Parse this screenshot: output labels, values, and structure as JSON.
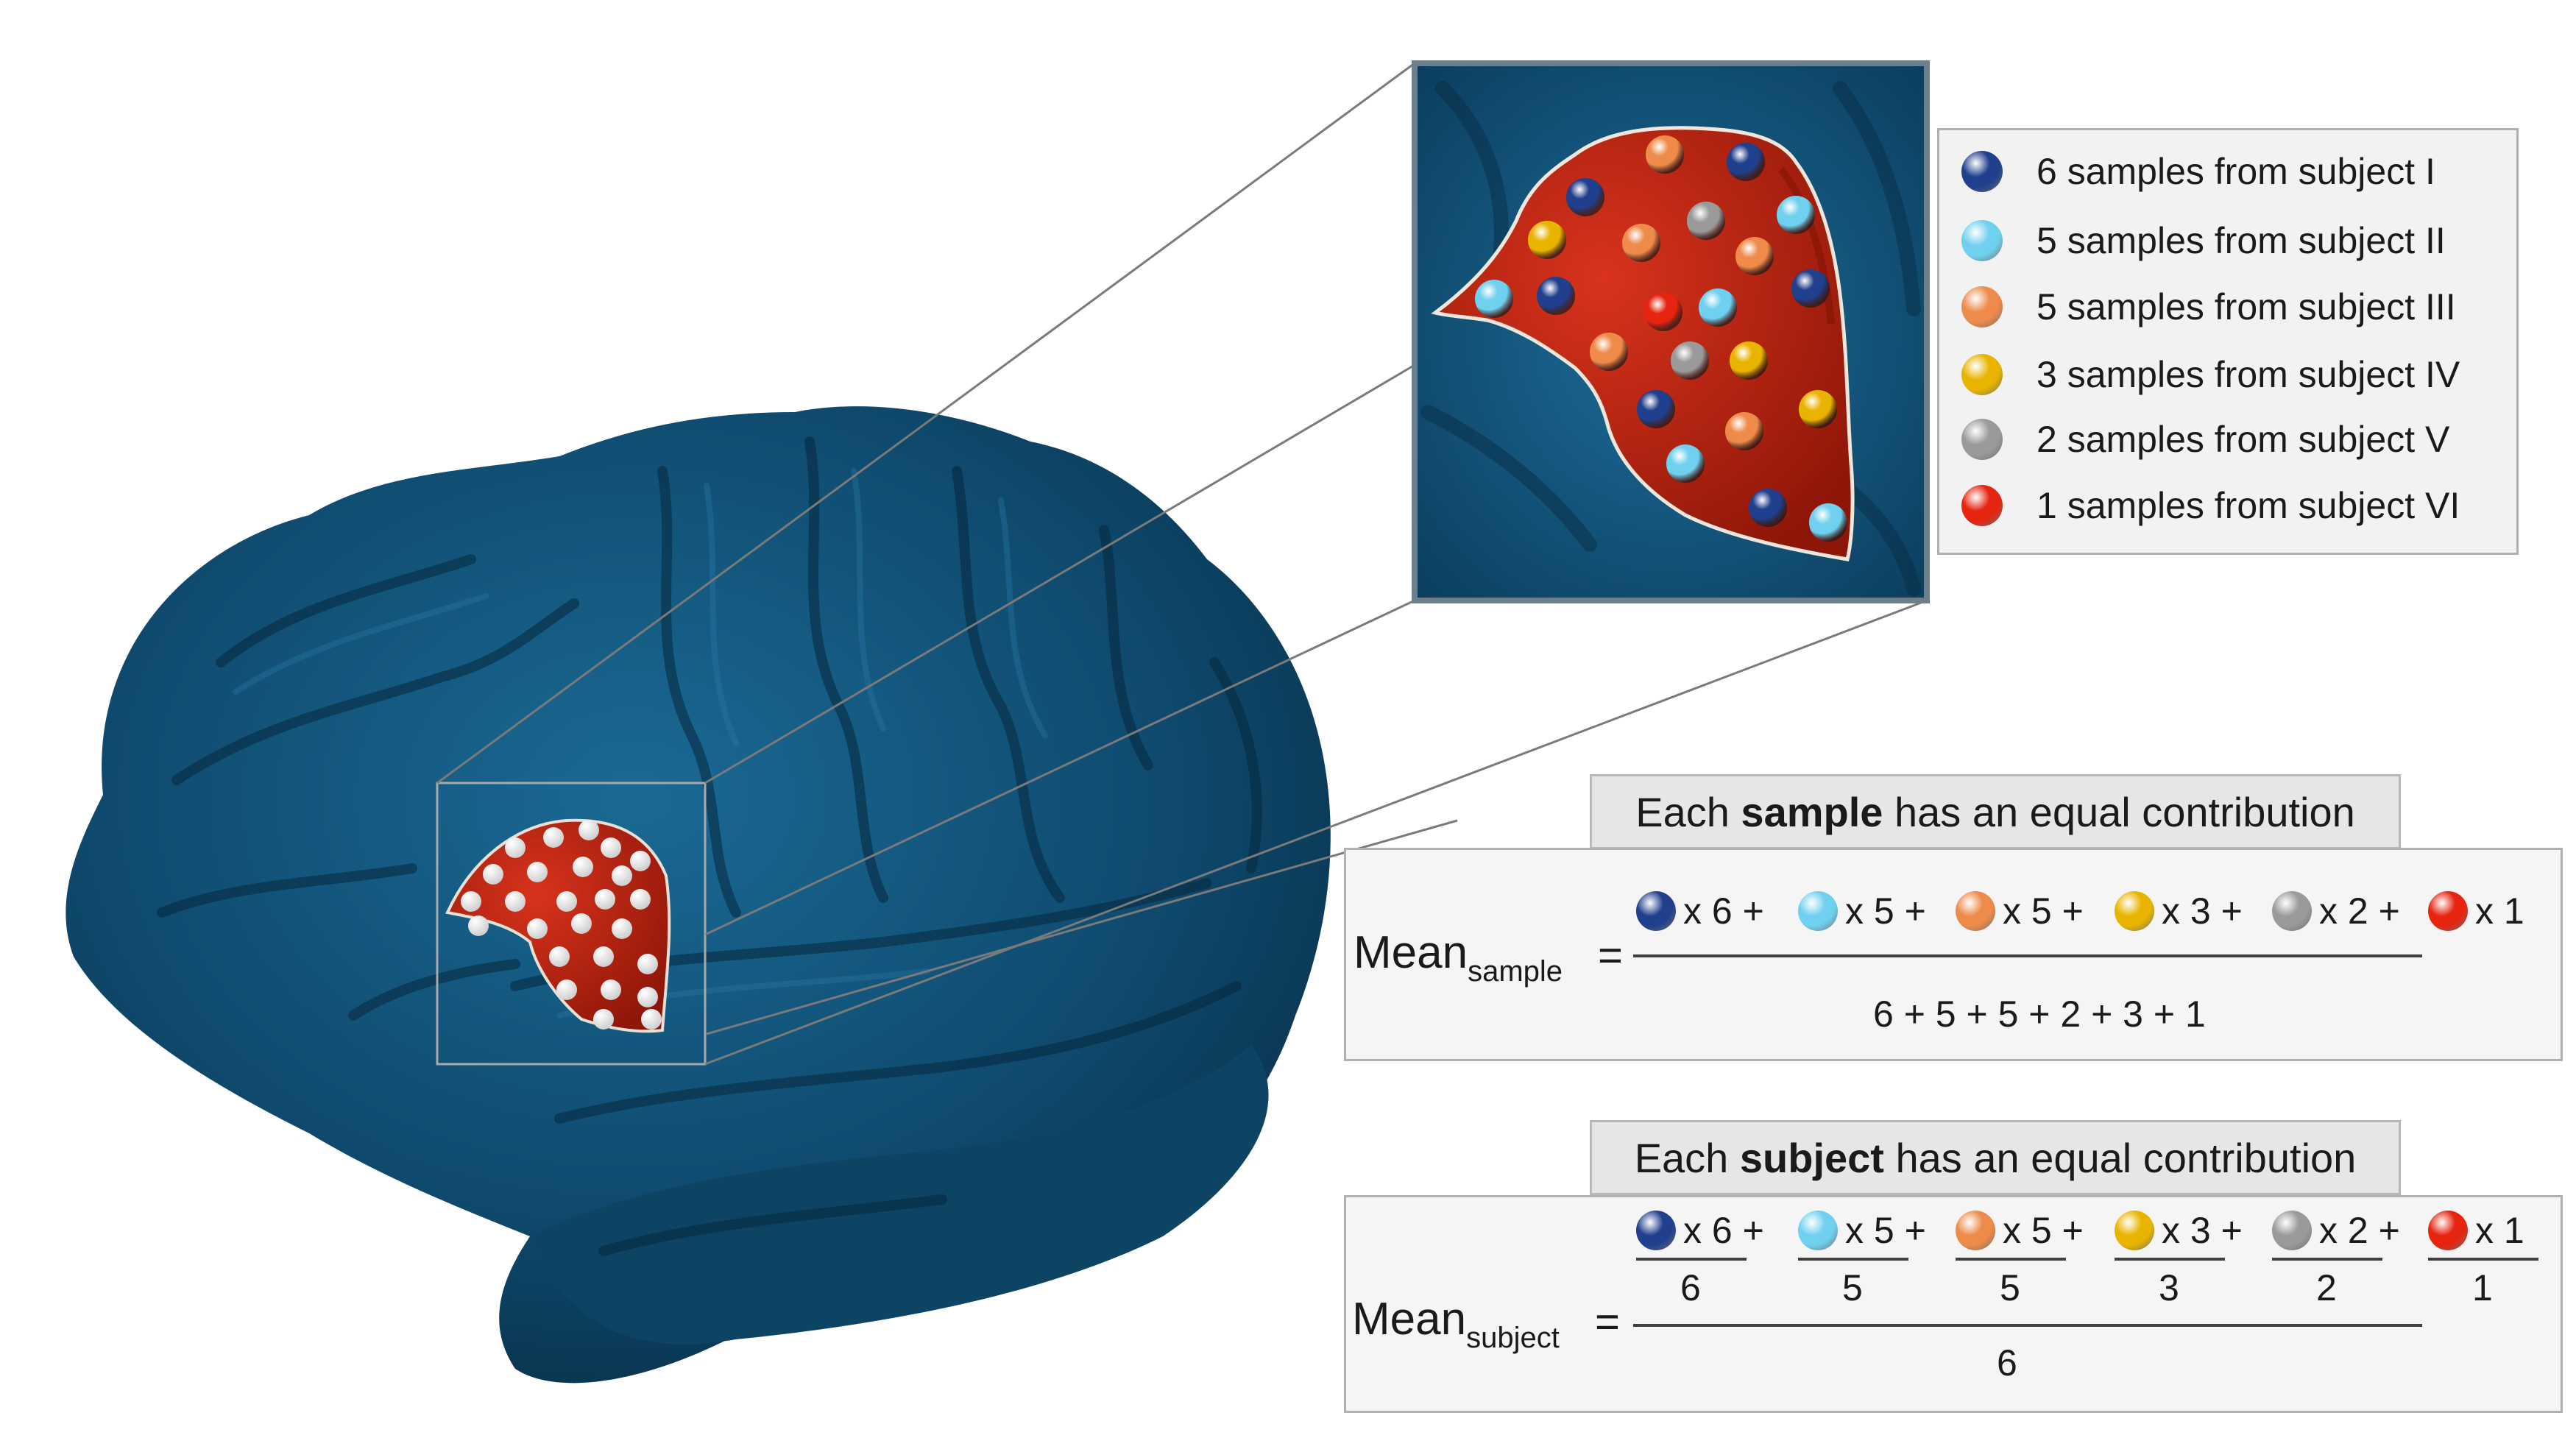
{
  "colors": {
    "brain": "#0f4a6e",
    "region": "#b5200f",
    "subject_I": "#203f8c",
    "subject_II": "#6fd0ef",
    "subject_III": "#ee8a4a",
    "subject_IV": "#e8b400",
    "subject_V": "#9a9a9a",
    "subject_VI": "#e62410"
  },
  "legend": {
    "items": [
      {
        "label": "6 samples from subject I",
        "color": "#203f8c"
      },
      {
        "label": "5 samples from subject II",
        "color": "#6fd0ef"
      },
      {
        "label": "5 samples from subject III",
        "color": "#ee8a4a"
      },
      {
        "label": "3 samples from subject IV",
        "color": "#e8b400"
      },
      {
        "label": "2 samples from subject V",
        "color": "#9a9a9a"
      },
      {
        "label": "1 samples from subject VI",
        "color": "#e62410"
      }
    ]
  },
  "sample_formula": {
    "heading_pre": "Each ",
    "heading_bold": "sample",
    "heading_post": " has an equal contribution",
    "mean_label": "Mean",
    "mean_sub": "sample",
    "equals": "=",
    "terms": [
      "x 6 +",
      "x 5 +",
      "x 5 +",
      "x 3 +",
      "x 2 +",
      "x 1"
    ],
    "denominator": "6 + 5 + 5 + 2 + 3 + 1"
  },
  "subject_formula": {
    "heading_pre": "Each ",
    "heading_bold": "subject",
    "heading_post": " has an equal contribution",
    "mean_label": "Mean",
    "mean_sub": "subject",
    "equals": "=",
    "terms": [
      "x 6 +",
      "x 5 +",
      "x 5 +",
      "x 3 +",
      "x 2 +",
      "x 1"
    ],
    "sub_denominators": [
      "6",
      "5",
      "5",
      "3",
      "2",
      "1"
    ],
    "denominator": "6"
  }
}
